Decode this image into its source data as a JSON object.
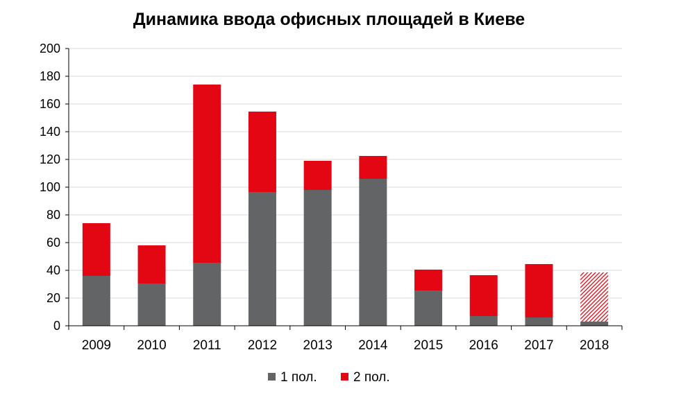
{
  "chart_data": {
    "type": "bar",
    "stacked": true,
    "title": "Динамика ввода офисных площадей в Киеве",
    "xlabel": "",
    "ylabel": "",
    "categories": [
      "2009",
      "2010",
      "2011",
      "2012",
      "2013",
      "2014",
      "2015",
      "2016",
      "2017",
      "2018"
    ],
    "series": [
      {
        "name": "1 пол.",
        "color": "#636466",
        "values": [
          36,
          30.5,
          45.5,
          96.5,
          98,
          106,
          25.5,
          7,
          6,
          3
        ]
      },
      {
        "name": "2 пол.",
        "color": "#e30613",
        "values": [
          38,
          27.5,
          128.5,
          58,
          21,
          16.5,
          15,
          29.5,
          38.5,
          35.5
        ]
      }
    ],
    "forecast_segment": {
      "category": "2018",
      "series": "2 пол.",
      "style": "hatched"
    },
    "ylim": [
      0,
      200
    ],
    "yticks": [
      0,
      20,
      40,
      60,
      80,
      100,
      120,
      140,
      160,
      180,
      200
    ],
    "grid": true,
    "legend_position": "bottom"
  }
}
